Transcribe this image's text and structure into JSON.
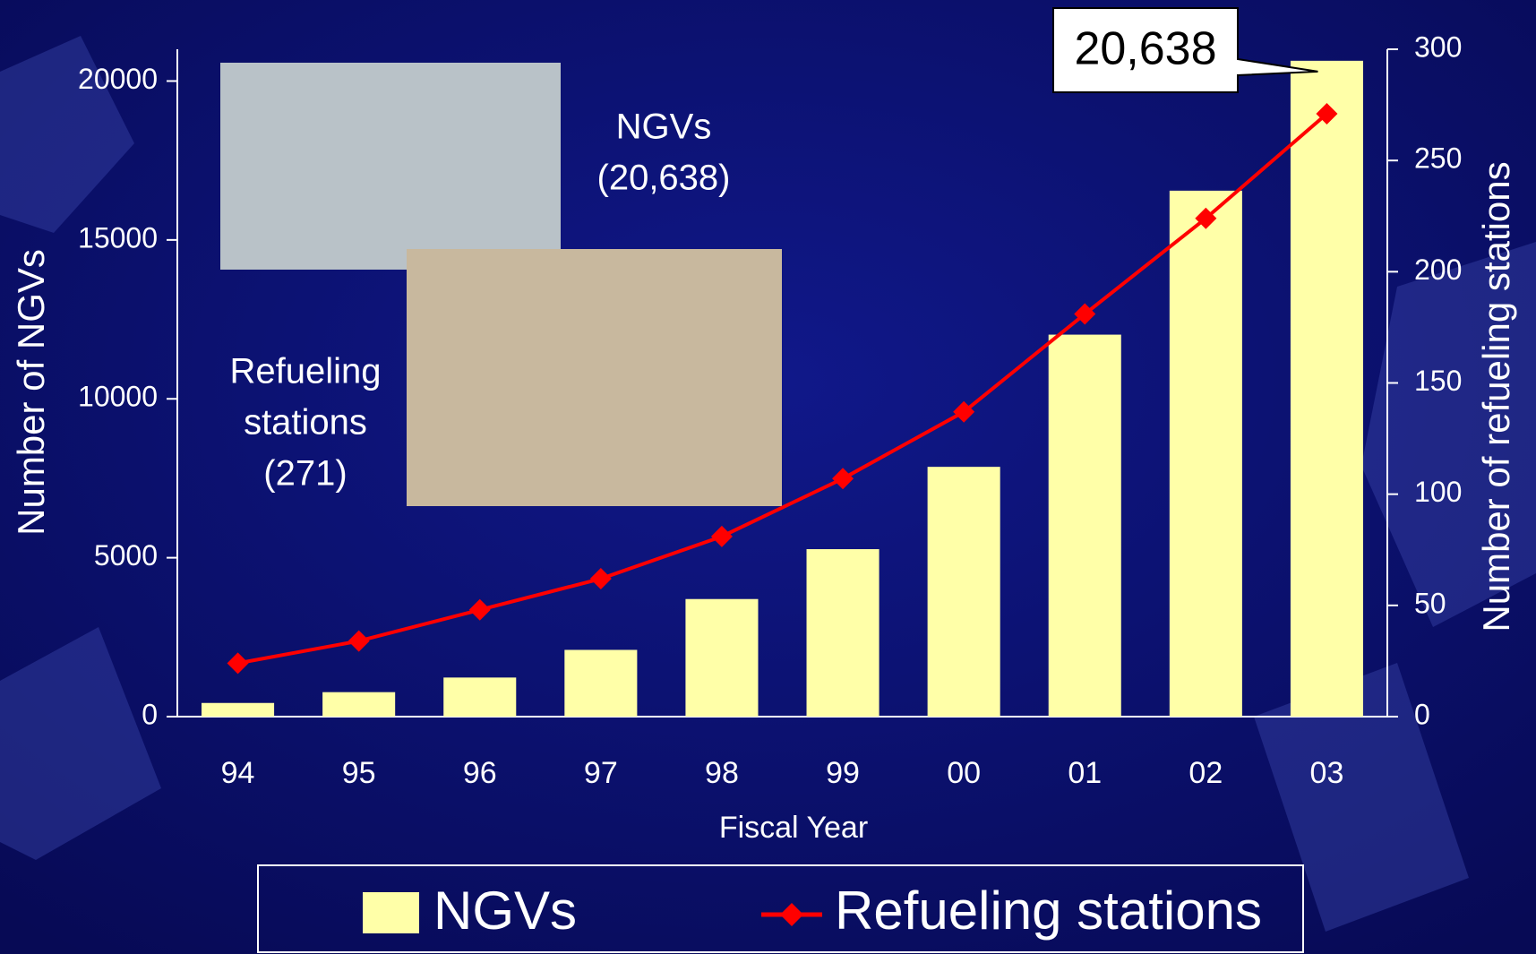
{
  "chart_data": {
    "type": "bar_line",
    "x_label": "Fiscal Year",
    "y_label": "Number of NGVs",
    "y2_label": "Number of refueling stations",
    "categories": [
      "94",
      "95",
      "96",
      "97",
      "98",
      "99",
      "00",
      "01",
      "02",
      "03"
    ],
    "series": [
      {
        "name": "NGVs",
        "type": "bar",
        "color": "#ffffa8",
        "values": [
          430,
          770,
          1230,
          2100,
          3700,
          5270,
          7860,
          12020,
          16550,
          20638
        ]
      },
      {
        "name": "Refueling stations",
        "type": "line",
        "axis": "y2",
        "color": "#ff0000",
        "values": [
          24,
          34,
          48,
          62,
          81,
          107,
          137,
          181,
          224,
          271
        ]
      }
    ],
    "ylim": [
      0,
      21000
    ],
    "yticks": [
      0,
      5000,
      10000,
      15000,
      20000
    ],
    "y2lim": [
      0,
      300
    ],
    "y2ticks": [
      0,
      50,
      100,
      150,
      200,
      250,
      300
    ],
    "callout": "20,638",
    "annotations": [
      [
        "NGVs",
        "(20,638)"
      ],
      [
        "Refueling",
        "stations",
        "(271)"
      ]
    ]
  }
}
